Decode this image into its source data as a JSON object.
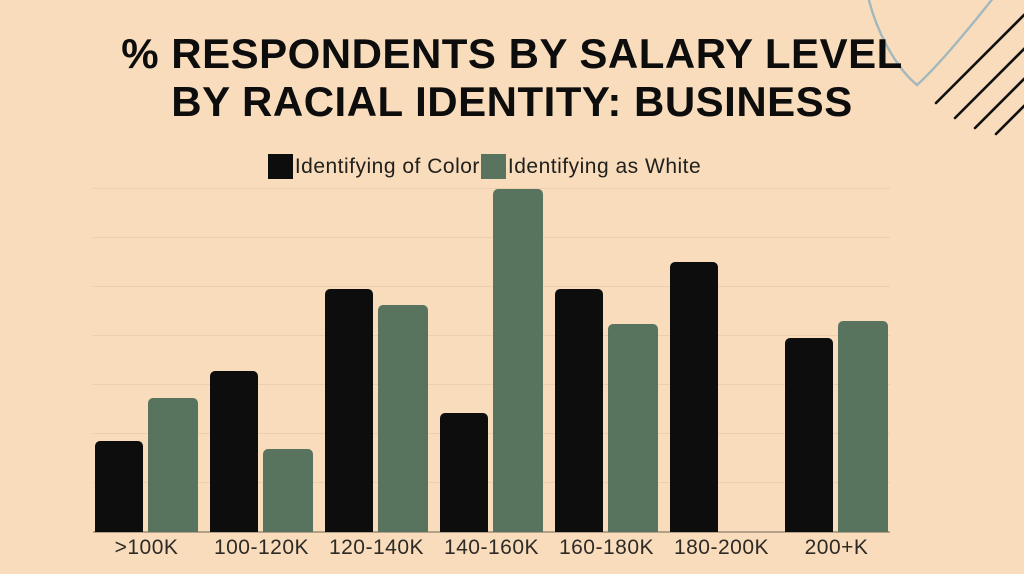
{
  "title": {
    "line1": "% RESPONDENTS BY SALARY LEVEL",
    "line2": "BY RACIAL IDENTITY: BUSINESS"
  },
  "legend": [
    {
      "label": "Identifying of Color",
      "color": "#0d0d0d"
    },
    {
      "label": "Identifying as White",
      "color": "#58745f"
    }
  ],
  "colors": {
    "background": "#f8dcbc",
    "gridline": "#ecceb1",
    "baseline": "#b3a089",
    "title_text": "#0d0d0d",
    "axis_label_text": "#2e2b27",
    "decor_curve": "#a3b8bd",
    "decor_hatch": "#111111"
  },
  "chart_data": {
    "type": "bar",
    "title": "% RESPONDENTS BY SALARY LEVEL BY RACIAL IDENTITY: BUSINESS",
    "categories": [
      ">100K",
      "100-120K",
      "120-140K",
      "140-160K",
      "160-180K",
      "180-200K",
      "200+K"
    ],
    "series": [
      {
        "name": "Identifying of Color",
        "color": "#0d0d0d",
        "values": [
          9.3,
          16.4,
          24.8,
          12.1,
          24.8,
          27.6,
          19.8
        ]
      },
      {
        "name": "Identifying as White",
        "color": "#58745f",
        "values": [
          13.7,
          8.5,
          23.2,
          35.0,
          21.2,
          0,
          21.5
        ]
      }
    ],
    "xlabel": "",
    "ylabel": "",
    "ylim": [
      0,
      35
    ],
    "gridline_step": 5,
    "y_axis_labels_visible": false,
    "grid": true,
    "legend_position": "top-center"
  }
}
